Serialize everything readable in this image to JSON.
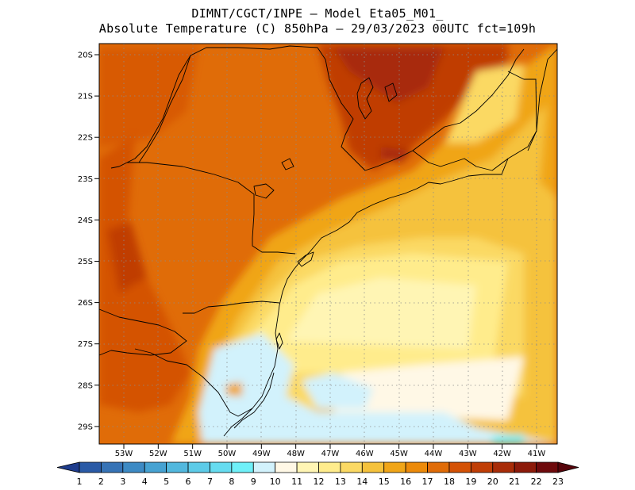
{
  "title_line1": "DIMNT/CGCT/INPE —  Model Eta05_M01_",
  "title_line2": "Absolute Temperature (C) 850hPa —  29/03/2023 00UTC fct=109h",
  "lat_ticks": [
    "20S",
    "21S",
    "22S",
    "23S",
    "24S",
    "25S",
    "26S",
    "27S",
    "28S",
    "29S"
  ],
  "lon_ticks": [
    "53W",
    "52W",
    "51W",
    "50W",
    "49W",
    "48W",
    "47W",
    "46W",
    "45W",
    "44W",
    "43W",
    "42W",
    "41W"
  ],
  "colorbar": {
    "labels": [
      "1",
      "2",
      "3",
      "4",
      "5",
      "6",
      "7",
      "8",
      "9",
      "10",
      "11",
      "12",
      "13",
      "14",
      "15",
      "16",
      "17",
      "18",
      "19",
      "20",
      "21",
      "22",
      "23"
    ],
    "colors": [
      "#1e3c8c",
      "#2a5aa6",
      "#3673b6",
      "#3d8ac4",
      "#46a2d2",
      "#52b8de",
      "#5dcbe8",
      "#66dcf0",
      "#6ff0f8",
      "#d2f2fc",
      "#fff8e6",
      "#fff5b4",
      "#ffec8c",
      "#fbd964",
      "#f5c23c",
      "#f0a518",
      "#ec8a0a",
      "#e06c08",
      "#d45206",
      "#c03e06",
      "#a82c08",
      "#8c1a0a",
      "#6e0a0c",
      "#56040a"
    ]
  }
}
